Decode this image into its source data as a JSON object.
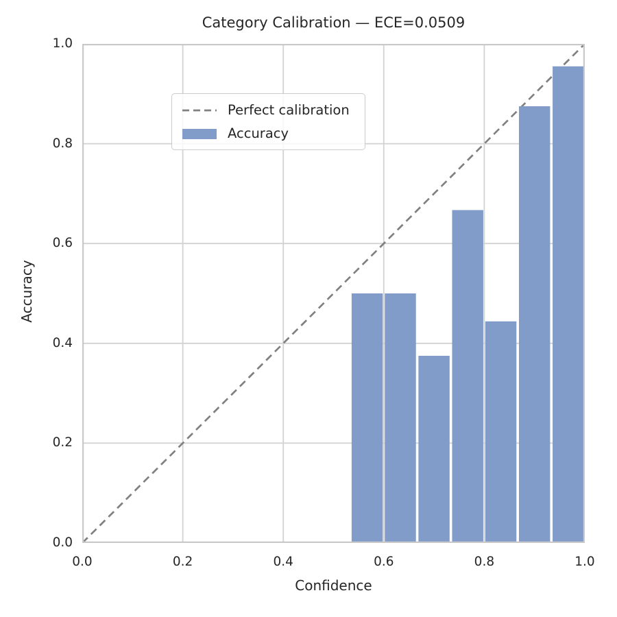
{
  "figure": {
    "title": "Category Calibration — ECE=0.0509",
    "xlabel": "Confidence",
    "ylabel": "Accuracy"
  },
  "legend": {
    "position": "upper left",
    "items": [
      {
        "label": "Perfect calibration",
        "swatch": "dashed-line",
        "color": "#808080"
      },
      {
        "label": "Accuracy",
        "swatch": "filled-patch",
        "color": "#819cc8"
      }
    ]
  },
  "chart_data": {
    "type": "bar",
    "title": "Category Calibration — ECE=0.0509",
    "ece": 0.0509,
    "xlabel": "Confidence",
    "ylabel": "Accuracy",
    "xlim": [
      0.0,
      1.0
    ],
    "ylim": [
      0.0,
      1.0
    ],
    "xticks": [
      0.0,
      0.2,
      0.4,
      0.6,
      0.8,
      1.0
    ],
    "yticks": [
      0.0,
      0.2,
      0.4,
      0.6,
      0.8,
      1.0
    ],
    "grid": true,
    "legend_position": "upper left",
    "bar_series": {
      "name": "Accuracy",
      "color": "#819cc8",
      "bin_centers": [
        0.567,
        0.633,
        0.7,
        0.767,
        0.833,
        0.9,
        0.967
      ],
      "values": [
        0.5,
        0.5,
        0.375,
        0.667,
        0.444,
        0.875,
        0.955
      ],
      "bar_width": 0.062
    },
    "reference_line": {
      "name": "Perfect calibration",
      "style": "dashed",
      "color": "#808080",
      "x": [
        0.0,
        1.0
      ],
      "y": [
        0.0,
        1.0
      ]
    }
  },
  "colors": {
    "bar_fill": "#819cc8",
    "dashed_line": "#808080",
    "grid": "#d2d2d2",
    "spine": "#c9c9c9",
    "text": "#262626",
    "background": "#ffffff"
  }
}
